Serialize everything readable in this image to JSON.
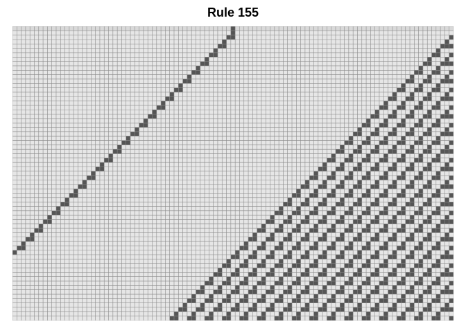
{
  "title": "Rule 155",
  "automaton": {
    "rule": 155,
    "width": 101,
    "generations": 67,
    "initial_live_cell": 50
  },
  "colors": {
    "live": "#e6e6e6",
    "dead": "#555555",
    "grid_line": "#8c8c8c",
    "first_row_dead": "#d9d9d9",
    "first_row_live": "#555555"
  }
}
